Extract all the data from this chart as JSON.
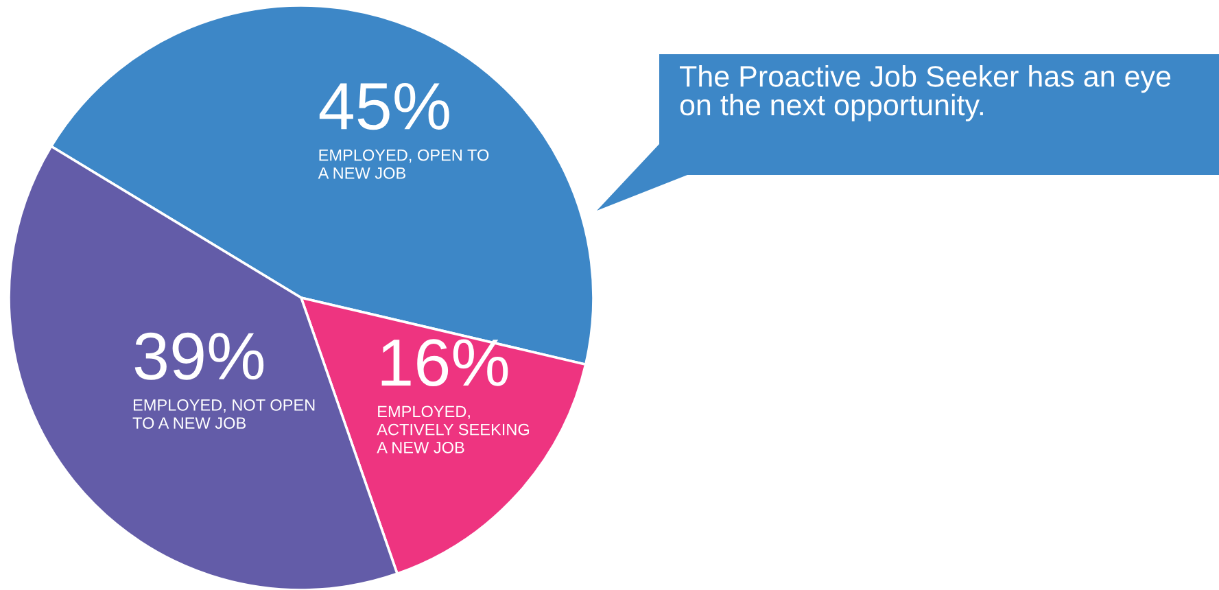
{
  "chart_data": {
    "type": "pie",
    "categories": [
      "EMPLOYED, OPEN TO\nA NEW JOB",
      "EMPLOYED,\nACTIVELY SEEKING\nA NEW JOB",
      "EMPLOYED, NOT OPEN\nTO A NEW JOB"
    ],
    "values": [
      45,
      16,
      39
    ],
    "colors": [
      "#3d87c7",
      "#ee3480",
      "#635ca8"
    ],
    "value_labels": [
      "45%",
      "16%",
      "39%"
    ],
    "annotations": [
      "The Proactive Job Seeker has an eye\non the next opportunity."
    ],
    "legend": false
  }
}
